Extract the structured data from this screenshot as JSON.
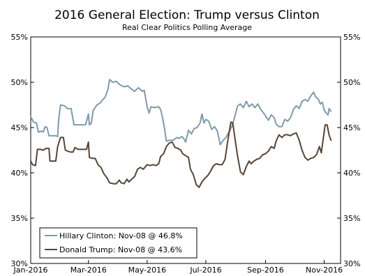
{
  "chart_data": {
    "type": "line",
    "title": "2016 General Election: Trump versus Clinton",
    "subtitle": "Real Clear Politics Polling Average",
    "xlabel": "",
    "ylabel": "",
    "x_range": [
      "2016-01-01",
      "2016-11-18"
    ],
    "ylim": [
      30,
      55
    ],
    "y_ticks": [
      30,
      35,
      40,
      45,
      50,
      55
    ],
    "y_tick_labels": [
      "30%",
      "35%",
      "40%",
      "45%",
      "50%",
      "55%"
    ],
    "x_ticks": [
      "2016-01-01",
      "2016-03-01",
      "2016-05-01",
      "2016-07-01",
      "2016-09-01",
      "2016-11-01"
    ],
    "x_tick_labels": [
      "Jan-2016",
      "Mar-2016",
      "May-2016",
      "Jul-2016",
      "Sep-2016",
      "Nov-2016"
    ],
    "y_axis_both_sides": true,
    "grid": false,
    "legend_position": "bottom-left",
    "series": [
      {
        "name": "Hillary Clinton: Nov-08 @ 46.8%",
        "color": "#7f9aab",
        "points": [
          [
            "2016-01-01",
            46.2
          ],
          [
            "2016-01-04",
            45.6
          ],
          [
            "2016-01-07",
            45.5
          ],
          [
            "2016-01-09",
            44.5
          ],
          [
            "2016-01-12",
            44.6
          ],
          [
            "2016-01-14",
            44.5
          ],
          [
            "2016-01-16",
            45.1
          ],
          [
            "2016-01-18",
            45.0
          ],
          [
            "2016-01-20",
            44.1
          ],
          [
            "2016-01-27",
            44.1
          ],
          [
            "2016-01-29",
            44.0
          ],
          [
            "2016-01-30",
            45.8
          ],
          [
            "2016-02-01",
            47.5
          ],
          [
            "2016-02-05",
            47.4
          ],
          [
            "2016-02-08",
            47.1
          ],
          [
            "2016-02-12",
            47.1
          ],
          [
            "2016-02-15",
            45.3
          ],
          [
            "2016-02-22",
            45.3
          ],
          [
            "2016-02-27",
            45.3
          ],
          [
            "2016-03-01",
            46.5
          ],
          [
            "2016-03-02",
            45.3
          ],
          [
            "2016-03-04",
            45.5
          ],
          [
            "2016-03-06",
            46.9
          ],
          [
            "2016-03-10",
            47.5
          ],
          [
            "2016-03-13",
            47.7
          ],
          [
            "2016-03-16",
            48.1
          ],
          [
            "2016-03-18",
            48.3
          ],
          [
            "2016-03-21",
            49.1
          ],
          [
            "2016-03-23",
            50.3
          ],
          [
            "2016-03-26",
            50.0
          ],
          [
            "2016-03-30",
            50.1
          ],
          [
            "2016-04-03",
            49.7
          ],
          [
            "2016-04-07",
            49.5
          ],
          [
            "2016-04-11",
            49.6
          ],
          [
            "2016-04-14",
            49.3
          ],
          [
            "2016-04-18",
            49.0
          ],
          [
            "2016-04-22",
            49.4
          ],
          [
            "2016-04-26",
            49.0
          ],
          [
            "2016-04-28",
            49.1
          ],
          [
            "2016-05-01",
            47.3
          ],
          [
            "2016-05-03",
            46.6
          ],
          [
            "2016-05-05",
            47.3
          ],
          [
            "2016-05-09",
            47.2
          ],
          [
            "2016-05-13",
            47.3
          ],
          [
            "2016-05-15",
            47.0
          ],
          [
            "2016-05-17",
            46.1
          ],
          [
            "2016-05-19",
            44.9
          ],
          [
            "2016-05-21",
            43.5
          ],
          [
            "2016-05-24",
            43.6
          ],
          [
            "2016-05-28",
            43.6
          ],
          [
            "2016-06-01",
            43.9
          ],
          [
            "2016-06-03",
            43.8
          ],
          [
            "2016-06-06",
            44.0
          ],
          [
            "2016-06-08",
            43.8
          ],
          [
            "2016-06-10",
            43.4
          ],
          [
            "2016-06-13",
            44.7
          ],
          [
            "2016-06-16",
            44.3
          ],
          [
            "2016-06-19",
            44.9
          ],
          [
            "2016-06-22",
            45.0
          ],
          [
            "2016-06-25",
            45.5
          ],
          [
            "2016-06-27",
            46.5
          ],
          [
            "2016-06-29",
            45.5
          ],
          [
            "2016-07-01",
            45.9
          ],
          [
            "2016-07-04",
            45.7
          ],
          [
            "2016-07-07",
            44.8
          ],
          [
            "2016-07-10",
            45.1
          ],
          [
            "2016-07-13",
            44.6
          ],
          [
            "2016-07-16",
            43.1
          ],
          [
            "2016-07-19",
            43.6
          ],
          [
            "2016-07-22",
            43.9
          ],
          [
            "2016-07-25",
            44.5
          ],
          [
            "2016-07-28",
            45.1
          ],
          [
            "2016-07-30",
            45.8
          ],
          [
            "2016-08-01",
            46.6
          ],
          [
            "2016-08-03",
            47.4
          ],
          [
            "2016-08-06",
            47.6
          ],
          [
            "2016-08-09",
            47.2
          ],
          [
            "2016-08-12",
            47.9
          ],
          [
            "2016-08-15",
            47.3
          ],
          [
            "2016-08-18",
            47.6
          ],
          [
            "2016-08-21",
            47.2
          ],
          [
            "2016-08-24",
            47.6
          ],
          [
            "2016-08-27",
            47.0
          ],
          [
            "2016-08-30",
            46.6
          ],
          [
            "2016-09-01",
            46.3
          ],
          [
            "2016-09-04",
            45.8
          ],
          [
            "2016-09-07",
            46.4
          ],
          [
            "2016-09-10",
            46.1
          ],
          [
            "2016-09-12",
            45.4
          ],
          [
            "2016-09-15",
            45.1
          ],
          [
            "2016-09-18",
            45.1
          ],
          [
            "2016-09-21",
            45.9
          ],
          [
            "2016-09-24",
            45.7
          ],
          [
            "2016-09-27",
            46.1
          ],
          [
            "2016-09-30",
            47.0
          ],
          [
            "2016-10-03",
            47.4
          ],
          [
            "2016-10-06",
            47.1
          ],
          [
            "2016-10-09",
            47.9
          ],
          [
            "2016-10-12",
            48.1
          ],
          [
            "2016-10-15",
            47.9
          ],
          [
            "2016-10-18",
            48.5
          ],
          [
            "2016-10-21",
            48.9
          ],
          [
            "2016-10-23",
            48.4
          ],
          [
            "2016-10-26",
            48.1
          ],
          [
            "2016-10-28",
            47.6
          ],
          [
            "2016-10-30",
            47.8
          ],
          [
            "2016-11-01",
            46.9
          ],
          [
            "2016-11-03",
            46.6
          ],
          [
            "2016-11-05",
            46.4
          ],
          [
            "2016-11-06",
            47.1
          ],
          [
            "2016-11-08",
            46.8
          ]
        ]
      },
      {
        "name": "Donald Trump: Nov-08 @ 43.6%",
        "color": "#574536",
        "points": [
          [
            "2016-01-01",
            41.3
          ],
          [
            "2016-01-03",
            40.9
          ],
          [
            "2016-01-06",
            40.8
          ],
          [
            "2016-01-08",
            42.6
          ],
          [
            "2016-01-11",
            42.6
          ],
          [
            "2016-01-14",
            42.5
          ],
          [
            "2016-01-17",
            42.7
          ],
          [
            "2016-01-20",
            42.7
          ],
          [
            "2016-01-21",
            41.3
          ],
          [
            "2016-01-27",
            41.3
          ],
          [
            "2016-01-29",
            42.9
          ],
          [
            "2016-02-01",
            43.9
          ],
          [
            "2016-02-04",
            43.9
          ],
          [
            "2016-02-06",
            42.5
          ],
          [
            "2016-02-11",
            42.3
          ],
          [
            "2016-02-14",
            42.3
          ],
          [
            "2016-02-16",
            42.8
          ],
          [
            "2016-02-19",
            42.6
          ],
          [
            "2016-02-23",
            42.6
          ],
          [
            "2016-02-28",
            42.6
          ],
          [
            "2016-03-01",
            43.4
          ],
          [
            "2016-03-02",
            41.7
          ],
          [
            "2016-03-05",
            41.6
          ],
          [
            "2016-03-08",
            41.6
          ],
          [
            "2016-03-11",
            40.9
          ],
          [
            "2016-03-14",
            40.6
          ],
          [
            "2016-03-17",
            39.9
          ],
          [
            "2016-03-20",
            39.5
          ],
          [
            "2016-03-23",
            38.9
          ],
          [
            "2016-03-27",
            38.8
          ],
          [
            "2016-03-30",
            38.8
          ],
          [
            "2016-04-02",
            39.2
          ],
          [
            "2016-04-04",
            38.9
          ],
          [
            "2016-04-07",
            38.8
          ],
          [
            "2016-04-10",
            39.3
          ],
          [
            "2016-04-12",
            39.0
          ],
          [
            "2016-04-15",
            39.3
          ],
          [
            "2016-04-18",
            39.6
          ],
          [
            "2016-04-21",
            40.4
          ],
          [
            "2016-04-24",
            40.6
          ],
          [
            "2016-04-27",
            40.4
          ],
          [
            "2016-05-01",
            40.9
          ],
          [
            "2016-05-04",
            40.8
          ],
          [
            "2016-05-07",
            40.9
          ],
          [
            "2016-05-10",
            40.8
          ],
          [
            "2016-05-13",
            41.0
          ],
          [
            "2016-05-15",
            41.8
          ],
          [
            "2016-05-18",
            42.1
          ],
          [
            "2016-05-21",
            42.9
          ],
          [
            "2016-05-24",
            43.3
          ],
          [
            "2016-05-27",
            43.4
          ],
          [
            "2016-05-30",
            42.8
          ],
          [
            "2016-06-02",
            42.7
          ],
          [
            "2016-06-05",
            42.5
          ],
          [
            "2016-06-07",
            42.1
          ],
          [
            "2016-06-10",
            41.9
          ],
          [
            "2016-06-13",
            41.7
          ],
          [
            "2016-06-15",
            40.4
          ],
          [
            "2016-06-18",
            39.8
          ],
          [
            "2016-06-21",
            38.7
          ],
          [
            "2016-06-24",
            38.4
          ],
          [
            "2016-06-27",
            39.0
          ],
          [
            "2016-06-30",
            39.4
          ],
          [
            "2016-07-03",
            39.7
          ],
          [
            "2016-07-06",
            40.2
          ],
          [
            "2016-07-09",
            40.8
          ],
          [
            "2016-07-12",
            41.0
          ],
          [
            "2016-07-15",
            40.9
          ],
          [
            "2016-07-18",
            40.9
          ],
          [
            "2016-07-21",
            41.5
          ],
          [
            "2016-07-24",
            43.7
          ],
          [
            "2016-07-27",
            45.6
          ],
          [
            "2016-07-29",
            45.5
          ],
          [
            "2016-07-31",
            44.0
          ],
          [
            "2016-08-03",
            41.8
          ],
          [
            "2016-08-06",
            40.1
          ],
          [
            "2016-08-09",
            39.8
          ],
          [
            "2016-08-12",
            40.7
          ],
          [
            "2016-08-15",
            41.3
          ],
          [
            "2016-08-17",
            41.0
          ],
          [
            "2016-08-20",
            41.3
          ],
          [
            "2016-08-23",
            41.5
          ],
          [
            "2016-08-26",
            41.6
          ],
          [
            "2016-08-29",
            42.0
          ],
          [
            "2016-09-01",
            42.1
          ],
          [
            "2016-09-04",
            42.4
          ],
          [
            "2016-09-07",
            42.9
          ],
          [
            "2016-09-10",
            42.7
          ],
          [
            "2016-09-12",
            43.5
          ],
          [
            "2016-09-15",
            44.2
          ],
          [
            "2016-09-18",
            43.9
          ],
          [
            "2016-09-21",
            44.2
          ],
          [
            "2016-09-24",
            44.2
          ],
          [
            "2016-09-27",
            44.1
          ],
          [
            "2016-09-30",
            44.3
          ],
          [
            "2016-10-03",
            44.4
          ],
          [
            "2016-10-06",
            43.6
          ],
          [
            "2016-10-09",
            42.5
          ],
          [
            "2016-10-12",
            41.7
          ],
          [
            "2016-10-15",
            41.4
          ],
          [
            "2016-10-18",
            41.6
          ],
          [
            "2016-10-21",
            41.7
          ],
          [
            "2016-10-24",
            42.0
          ],
          [
            "2016-10-27",
            42.9
          ],
          [
            "2016-10-29",
            42.2
          ],
          [
            "2016-10-31",
            43.8
          ],
          [
            "2016-11-02",
            45.3
          ],
          [
            "2016-11-04",
            45.3
          ],
          [
            "2016-11-06",
            44.2
          ],
          [
            "2016-11-08",
            43.6
          ]
        ]
      }
    ]
  }
}
